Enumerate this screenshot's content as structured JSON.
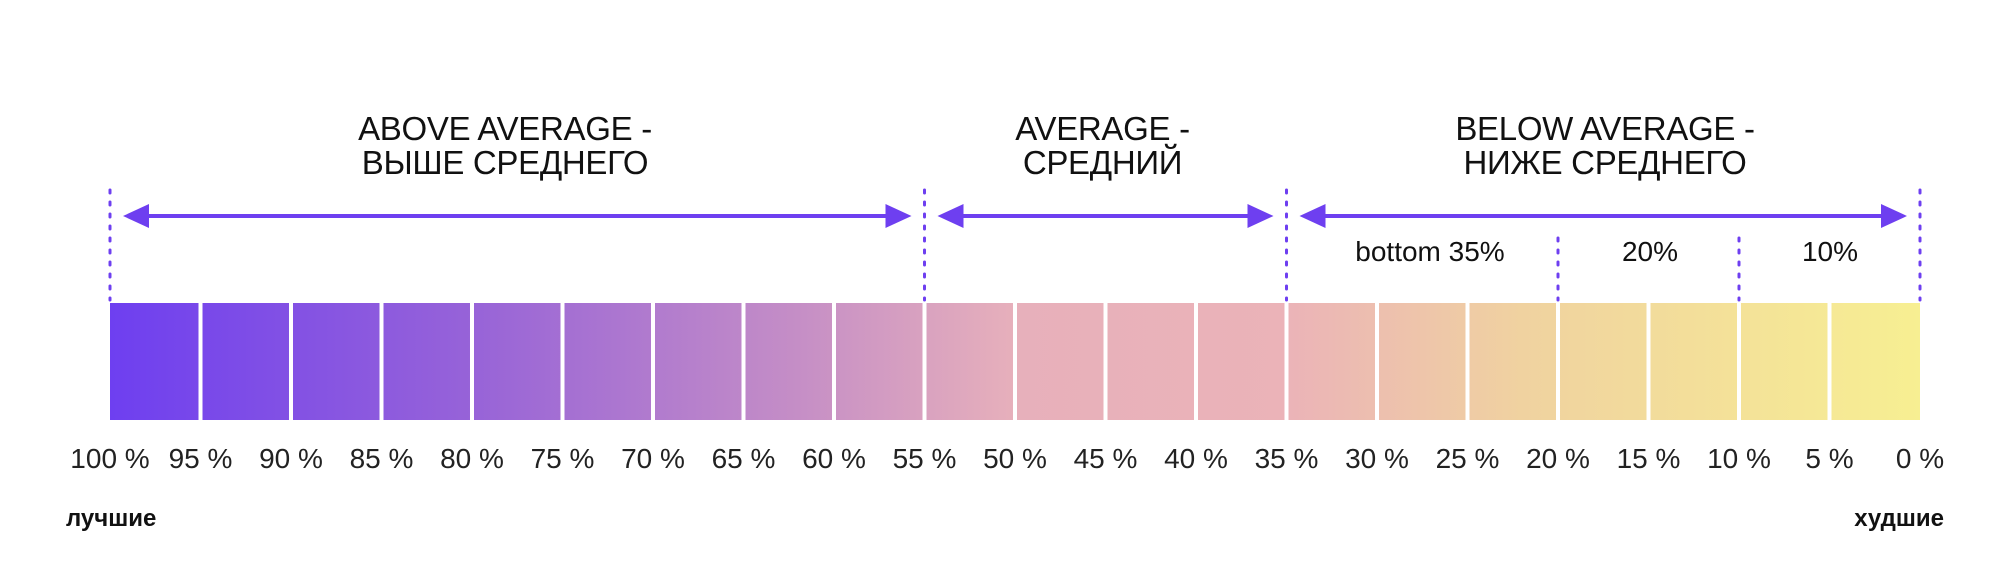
{
  "zones": [
    {
      "line1": "ABOVE AVERAGE -",
      "line2": "ВЫШЕ СРЕДНЕГО",
      "from": 100,
      "to": 55
    },
    {
      "line1": "AVERAGE -",
      "line2": "СРЕДНИЙ",
      "from": 55,
      "to": 35
    },
    {
      "line1": "BELOW AVERAGE -",
      "line2": "НИЖЕ СРЕДНЕГО",
      "from": 35,
      "to": 0
    }
  ],
  "sub_labels": [
    "bottom 35%",
    "20%",
    "10%"
  ],
  "ticks": [
    "100 %",
    "95 %",
    "90 %",
    "85 %",
    "80 %",
    "75 %",
    "70 %",
    "65 %",
    "60 %",
    "55 %",
    "50 %",
    "45 %",
    "40 %",
    "35 %",
    "30 %",
    "25 %",
    "20 %",
    "15 %",
    "10 %",
    "5 %",
    "0 %"
  ],
  "best_label": "лучшие",
  "worst_label": "худшие",
  "colors": {
    "accent": "#6e3ff0",
    "gradient": [
      "#6e3ff0",
      "#9763d8",
      "#c58ec6",
      "#e7b0bb",
      "#ebb3b8",
      "#f0d2a0",
      "#f7ef92"
    ]
  }
}
